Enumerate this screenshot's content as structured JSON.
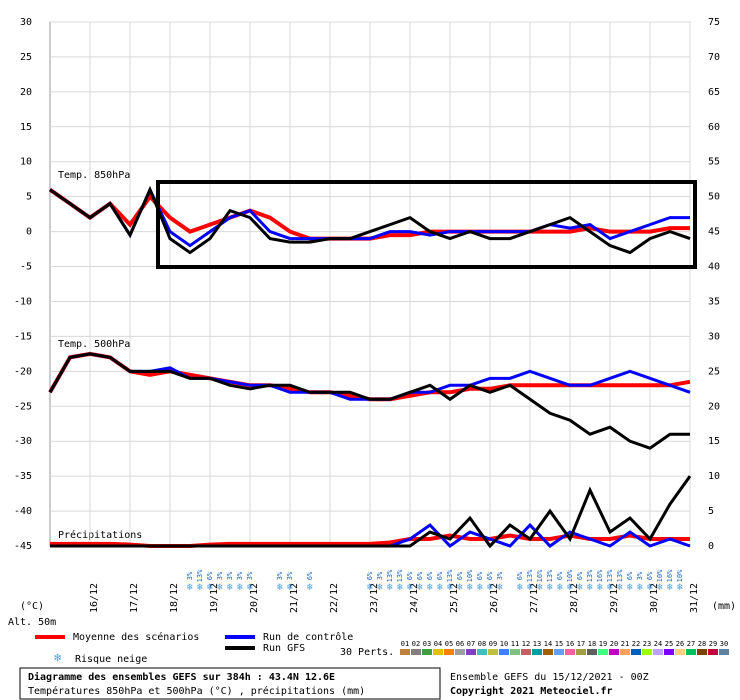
{
  "chart_data": {
    "type": "line",
    "x": [
      0,
      12,
      24,
      36,
      48,
      60,
      72,
      84,
      96,
      108,
      120,
      132,
      144,
      156,
      168,
      180,
      192,
      204,
      216,
      228,
      240,
      252,
      264,
      276,
      288,
      300,
      312,
      324,
      336,
      348,
      360,
      372,
      384
    ],
    "xlim": [
      0,
      384
    ],
    "xticks": [
      {
        "value": 24,
        "label": "16/12"
      },
      {
        "value": 48,
        "label": "17/12"
      },
      {
        "value": 72,
        "label": "18/12"
      },
      {
        "value": 96,
        "label": "19/12"
      },
      {
        "value": 120,
        "label": "20/12"
      },
      {
        "value": 144,
        "label": "21/12"
      },
      {
        "value": 168,
        "label": "22/12"
      },
      {
        "value": 192,
        "label": "23/12"
      },
      {
        "value": 216,
        "label": "24/12"
      },
      {
        "value": 240,
        "label": "25/12"
      },
      {
        "value": 264,
        "label": "26/12"
      },
      {
        "value": 288,
        "label": "27/12"
      },
      {
        "value": 312,
        "label": "28/12"
      },
      {
        "value": 336,
        "label": "29/12"
      },
      {
        "value": 360,
        "label": "30/12"
      },
      {
        "value": 384,
        "label": "31/12"
      }
    ],
    "ylim": [
      -45,
      30
    ],
    "yticks": [
      30,
      25,
      20,
      15,
      10,
      5,
      0,
      -5,
      -10,
      -15,
      -20,
      -25,
      -30,
      -35,
      -40,
      -45
    ],
    "y2lim": [
      0,
      75
    ],
    "y2ticks": [
      75,
      70,
      65,
      60,
      55,
      50,
      45,
      40,
      35,
      30,
      25,
      20,
      15,
      10,
      5,
      0
    ],
    "y_unit": "(°C)",
    "y2_unit": "(mm)",
    "altitude": "Alt. 50m",
    "grid": true,
    "panel_labels": [
      "Temp. 850hPa",
      "Temp. 500hPa",
      "Précipitations"
    ],
    "series": [
      {
        "name": "Moyenne des scénarios",
        "color": "#ff0000",
        "values": [
          6,
          4,
          2,
          4,
          1,
          5,
          2,
          0,
          1,
          2,
          3,
          2,
          0,
          -1,
          -1,
          -1,
          -1,
          -0.5,
          -0.5,
          0,
          0,
          0,
          0,
          0,
          0,
          0,
          0,
          0.5,
          0,
          0,
          0,
          0.5,
          0.5
        ]
      },
      {
        "name": "Run de contrôle",
        "color": "#0000ff",
        "values": [
          6,
          4,
          2,
          4,
          -0.5,
          6,
          0,
          -2,
          0,
          2,
          3,
          0,
          -1,
          -1,
          -1,
          -1,
          -1,
          0,
          0,
          -0.5,
          0,
          0,
          0,
          0,
          0,
          1,
          0.5,
          1,
          -1,
          0,
          1,
          2,
          2
        ]
      },
      {
        "name": "Run GFS",
        "color": "#000000",
        "values": [
          6,
          4,
          2,
          4,
          -0.5,
          6,
          -1,
          -3,
          -1,
          3,
          2,
          -1,
          -1.5,
          -1.5,
          -1,
          -1,
          0,
          1,
          2,
          0,
          -1,
          0,
          -1,
          -1,
          0,
          1,
          2,
          0,
          -2,
          -3,
          -1,
          0,
          -1
        ]
      },
      {
        "name": "Moyenne des scénarios",
        "color": "#ff0000",
        "values": [
          -23,
          -18,
          -17.5,
          -18,
          -20,
          -20.5,
          -20,
          -20.5,
          -21,
          -21.5,
          -22,
          -22,
          -22.5,
          -23,
          -23,
          -23.5,
          -24,
          -24,
          -23.5,
          -23,
          -23,
          -22.5,
          -22.5,
          -22,
          -22,
          -22,
          -22,
          -22,
          -22,
          -22,
          -22,
          -22,
          -21.5
        ]
      },
      {
        "name": "Run de contrôle",
        "color": "#0000ff",
        "values": [
          -23,
          -18,
          -17.5,
          -18,
          -20,
          -20,
          -19.5,
          -21,
          -21,
          -21.5,
          -22,
          -22,
          -23,
          -23,
          -23,
          -24,
          -24,
          -24,
          -23,
          -23,
          -22,
          -22,
          -21,
          -21,
          -20,
          -21,
          -22,
          -22,
          -21,
          -20,
          -21,
          -22,
          -23
        ]
      },
      {
        "name": "Run GFS",
        "color": "#000000",
        "values": [
          -23,
          -18,
          -17.5,
          -18,
          -20,
          -20,
          -20,
          -21,
          -21,
          -22,
          -22.5,
          -22,
          -22,
          -23,
          -23,
          -23,
          -24,
          -24,
          -23,
          -22,
          -24,
          -22,
          -23,
          -22,
          -24,
          -26,
          -27,
          -29,
          -28,
          -30,
          -31,
          -29,
          -29
        ]
      },
      {
        "name": "Moyenne des scénarios",
        "color": "#ff0000",
        "axis": "y2",
        "values": [
          0.3,
          0.3,
          0.3,
          0.3,
          0.2,
          0,
          0,
          0,
          0.2,
          0.3,
          0.3,
          0.3,
          0.3,
          0.3,
          0.3,
          0.3,
          0.3,
          0.5,
          1,
          1,
          1.5,
          1,
          1,
          1.5,
          1,
          1,
          1.5,
          1,
          1,
          1.5,
          1,
          1,
          1
        ]
      },
      {
        "name": "Run de contrôle",
        "color": "#0000ff",
        "axis": "y2",
        "values": [
          0,
          0,
          0,
          0,
          0,
          0,
          0,
          0,
          0,
          0,
          0,
          0,
          0,
          0,
          0,
          0,
          0,
          0,
          1,
          3,
          0,
          2,
          1,
          0,
          3,
          0,
          2,
          1,
          0,
          2,
          0,
          1,
          0
        ]
      },
      {
        "name": "Run GFS",
        "color": "#000000",
        "axis": "y2",
        "values": [
          0,
          0,
          0,
          0,
          0,
          0,
          0,
          0,
          0,
          0,
          0,
          0,
          0,
          0,
          0,
          0,
          0,
          0,
          0,
          2,
          1,
          4,
          0,
          3,
          1,
          5,
          1,
          8,
          2,
          4,
          1,
          6,
          10
        ]
      }
    ],
    "legend": [
      "Moyenne des scénarios",
      "Run de contrôle",
      "Run GFS"
    ],
    "snow_risk": {
      "label": "Risque neige",
      "x": [
        84,
        90,
        96,
        102,
        108,
        114,
        120,
        138,
        144,
        156,
        192,
        198,
        204,
        210,
        216,
        222,
        228,
        234,
        240,
        246,
        252,
        258,
        264,
        270,
        282,
        288,
        294,
        300,
        306,
        312,
        318,
        324,
        330,
        336,
        342,
        348,
        354,
        360,
        366,
        372,
        378
      ],
      "labels": [
        "3%",
        "13%",
        "6%",
        "3%",
        "3%",
        "3%",
        "3%",
        "3%",
        "3%",
        "6%",
        "6%",
        "3%",
        "13%",
        "13%",
        "6%",
        "6%",
        "6%",
        "6%",
        "13%",
        "6%",
        "10%",
        "6%",
        "6%",
        "3%",
        "6%",
        "13%",
        "16%",
        "13%",
        "6%",
        "10%",
        "6%",
        "13%",
        "16%",
        "13%",
        "13%",
        "6%",
        "3%",
        "6%",
        "10%",
        "16%",
        "10%"
      ]
    },
    "perturbations": {
      "label": "30 Perts.",
      "members": [
        {
          "name": "01",
          "color": "#c08040"
        },
        {
          "name": "02",
          "color": "#808080"
        },
        {
          "name": "03",
          "color": "#40a040"
        },
        {
          "name": "04",
          "color": "#e0c000"
        },
        {
          "name": "05",
          "color": "#ff8000"
        },
        {
          "name": "06",
          "color": "#a0a0a0"
        },
        {
          "name": "07",
          "color": "#8040c0"
        },
        {
          "name": "08",
          "color": "#40c0c0"
        },
        {
          "name": "09",
          "color": "#c0c040"
        },
        {
          "name": "10",
          "color": "#4080ff"
        },
        {
          "name": "11",
          "color": "#80c080"
        },
        {
          "name": "12",
          "color": "#c06060"
        },
        {
          "name": "13",
          "color": "#00a0a0"
        },
        {
          "name": "14",
          "color": "#a06000"
        },
        {
          "name": "15",
          "color": "#60a0ff"
        },
        {
          "name": "16",
          "color": "#ff60a0"
        },
        {
          "name": "17",
          "color": "#a0a040"
        },
        {
          "name": "18",
          "color": "#606060"
        },
        {
          "name": "19",
          "color": "#40ff80"
        },
        {
          "name": "20",
          "color": "#c000c0"
        },
        {
          "name": "21",
          "color": "#ffa060"
        },
        {
          "name": "22",
          "color": "#0060c0"
        },
        {
          "name": "23",
          "color": "#a0ff00"
        },
        {
          "name": "24",
          "color": "#c0a0ff"
        },
        {
          "name": "25",
          "color": "#8000ff"
        },
        {
          "name": "26",
          "color": "#ffd080"
        },
        {
          "name": "27",
          "color": "#00c060"
        },
        {
          "name": "28",
          "color": "#804000"
        },
        {
          "name": "29",
          "color": "#c00040"
        },
        {
          "name": "30",
          "color": "#6080a0"
        }
      ]
    },
    "footer": {
      "title": "Diagramme des ensembles GEFS sur 384h : 43.4N 12.6E",
      "subtitle": "Températures 850hPa et 500hPa (°C) , précipitations (mm)",
      "run": "Ensemble GEFS du 15/12/2021 - 00Z",
      "copyright": "Copyright 2021 Meteociel.fr"
    }
  }
}
